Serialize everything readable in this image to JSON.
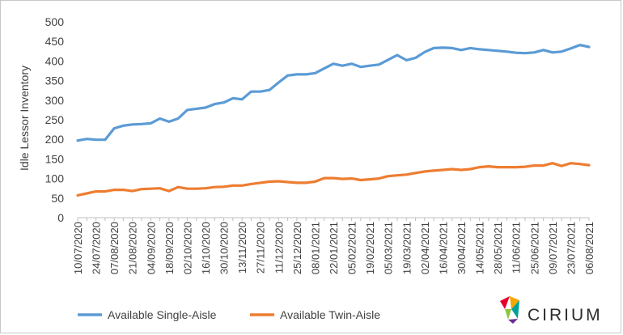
{
  "chart_data": {
    "type": "line",
    "title": "",
    "xlabel": "",
    "ylabel": "Idle Lessor Inventory",
    "ylim": [
      0,
      500
    ],
    "yticks": [
      0,
      50,
      100,
      150,
      200,
      250,
      300,
      350,
      400,
      450,
      500
    ],
    "grid": false,
    "legend_position": "bottom-left",
    "x": [
      "10/07/2020",
      "17/07/2020",
      "24/07/2020",
      "31/07/2020",
      "07/08/2020",
      "14/08/2020",
      "21/08/2020",
      "28/08/2020",
      "04/09/2020",
      "11/09/2020",
      "18/09/2020",
      "25/09/2020",
      "02/10/2020",
      "09/10/2020",
      "16/10/2020",
      "23/10/2020",
      "30/10/2020",
      "06/11/2020",
      "13/11/2020",
      "20/11/2020",
      "27/11/2020",
      "04/12/2020",
      "11/12/2020",
      "18/12/2020",
      "25/12/2020",
      "01/01/2021",
      "08/01/2021",
      "15/01/2021",
      "22/01/2021",
      "29/01/2021",
      "05/02/2021",
      "12/02/2021",
      "19/02/2021",
      "26/02/2021",
      "05/03/2021",
      "12/03/2021",
      "19/03/2021",
      "26/03/2021",
      "02/04/2021",
      "09/04/2021",
      "16/04/2021",
      "23/04/2021",
      "30/04/2021",
      "07/05/2021",
      "14/05/2021",
      "21/05/2021",
      "28/05/2021",
      "04/06/2021",
      "11/06/2021",
      "18/06/2021",
      "25/06/2021",
      "02/07/2021",
      "09/07/2021",
      "16/07/2021",
      "23/07/2021",
      "30/07/2021",
      "06/08/2021"
    ],
    "x_tick_labels": [
      "10/07/2020",
      "24/07/2020",
      "07/08/2020",
      "21/08/2020",
      "04/09/2020",
      "18/09/2020",
      "02/10/2020",
      "16/10/2020",
      "30/10/2020",
      "13/11/2020",
      "27/11/2020",
      "11/12/2020",
      "25/12/2020",
      "08/01/2021",
      "22/01/2021",
      "05/02/2021",
      "19/02/2021",
      "05/03/2021",
      "19/03/2021",
      "02/04/2021",
      "16/04/2021",
      "30/04/2021",
      "14/05/2021",
      "28/05/2021",
      "11/06/2021",
      "25/06/2021",
      "09/07/2021",
      "23/07/2021",
      "06/08/2021"
    ],
    "series": [
      {
        "name": "Available Single-Aisle",
        "color": "#5b9bd5",
        "values": [
          197,
          201,
          199,
          199,
          228,
          235,
          238,
          239,
          241,
          253,
          245,
          253,
          275,
          278,
          281,
          290,
          294,
          305,
          302,
          322,
          322,
          326,
          345,
          363,
          366,
          366,
          369,
          381,
          393,
          388,
          393,
          385,
          388,
          391,
          403,
          415,
          402,
          408,
          423,
          433,
          434,
          433,
          428,
          433,
          430,
          428,
          426,
          424,
          421,
          420,
          422,
          428,
          422,
          424,
          432,
          441,
          436
        ]
      },
      {
        "name": "Available Twin-Aisle",
        "color": "#ed7d31",
        "values": [
          57,
          62,
          67,
          67,
          71,
          71,
          68,
          73,
          74,
          75,
          68,
          78,
          74,
          74,
          75,
          78,
          79,
          82,
          82,
          86,
          89,
          92,
          93,
          91,
          89,
          89,
          92,
          101,
          101,
          99,
          100,
          96,
          98,
          100,
          106,
          108,
          110,
          114,
          118,
          120,
          122,
          124,
          122,
          124,
          129,
          131,
          129,
          129,
          129,
          130,
          133,
          133,
          139,
          132,
          139,
          137,
          134
        ]
      }
    ]
  },
  "legend": {
    "single": "Available Single-Aisle",
    "twin": "Available Twin-Aisle"
  },
  "brand": {
    "name": "CIRIUM",
    "logo_colors": [
      "#e4002b",
      "#f7a600",
      "#8cc63f",
      "#00a19a",
      "#6a2c91"
    ]
  }
}
